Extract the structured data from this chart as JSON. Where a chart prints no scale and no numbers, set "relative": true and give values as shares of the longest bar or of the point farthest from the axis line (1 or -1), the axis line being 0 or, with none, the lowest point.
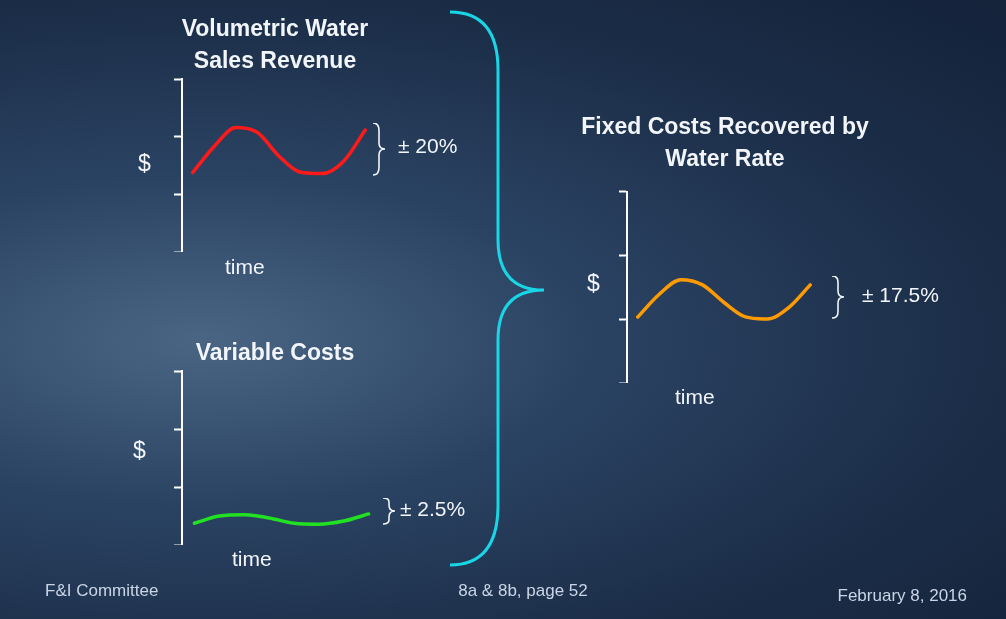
{
  "chart_data": [
    {
      "type": "line",
      "title": "Volumetric Water Sales Revenue",
      "ylabel": "$",
      "xlabel": "time",
      "relative": true,
      "categories": [
        null,
        null,
        null,
        null,
        null,
        null,
        null,
        null,
        null
      ],
      "series": [
        {
          "color": "#ff1a1a",
          "values": [
            0.64,
            0.85,
            1,
            0.96,
            0.77,
            0.64,
            0.63,
            0.73,
            0.98
          ]
        }
      ],
      "annotations": [
        "± 20%"
      ]
    },
    {
      "type": "line",
      "title": "Variable Costs",
      "ylabel": "$",
      "xlabel": "time",
      "relative": true,
      "categories": [
        null,
        null,
        null,
        null,
        null,
        null,
        null,
        null
      ],
      "series": [
        {
          "color": "#22e022",
          "values": [
            0.7,
            0.93,
            0.97,
            0.87,
            0.7,
            0.67,
            0.77,
            1
          ]
        }
      ],
      "annotations": [
        "± 2.5%"
      ]
    },
    {
      "type": "line",
      "title": "Fixed Costs Recovered by Water Rate",
      "ylabel": "$",
      "xlabel": "time",
      "relative": true,
      "categories": [
        null,
        null,
        null,
        null,
        null,
        null,
        null,
        null,
        null
      ],
      "series": [
        {
          "color": "#ff9a00",
          "values": [
            0.64,
            0.86,
            1,
            0.95,
            0.78,
            0.64,
            0.62,
            0.73,
            0.95
          ]
        }
      ],
      "annotations": [
        "± 17.5%"
      ]
    },
    {
      "type": "other",
      "annotations": [
        "F&I Committee",
        "8a & 8b, page 52",
        "February 8, 2016"
      ]
    }
  ]
}
